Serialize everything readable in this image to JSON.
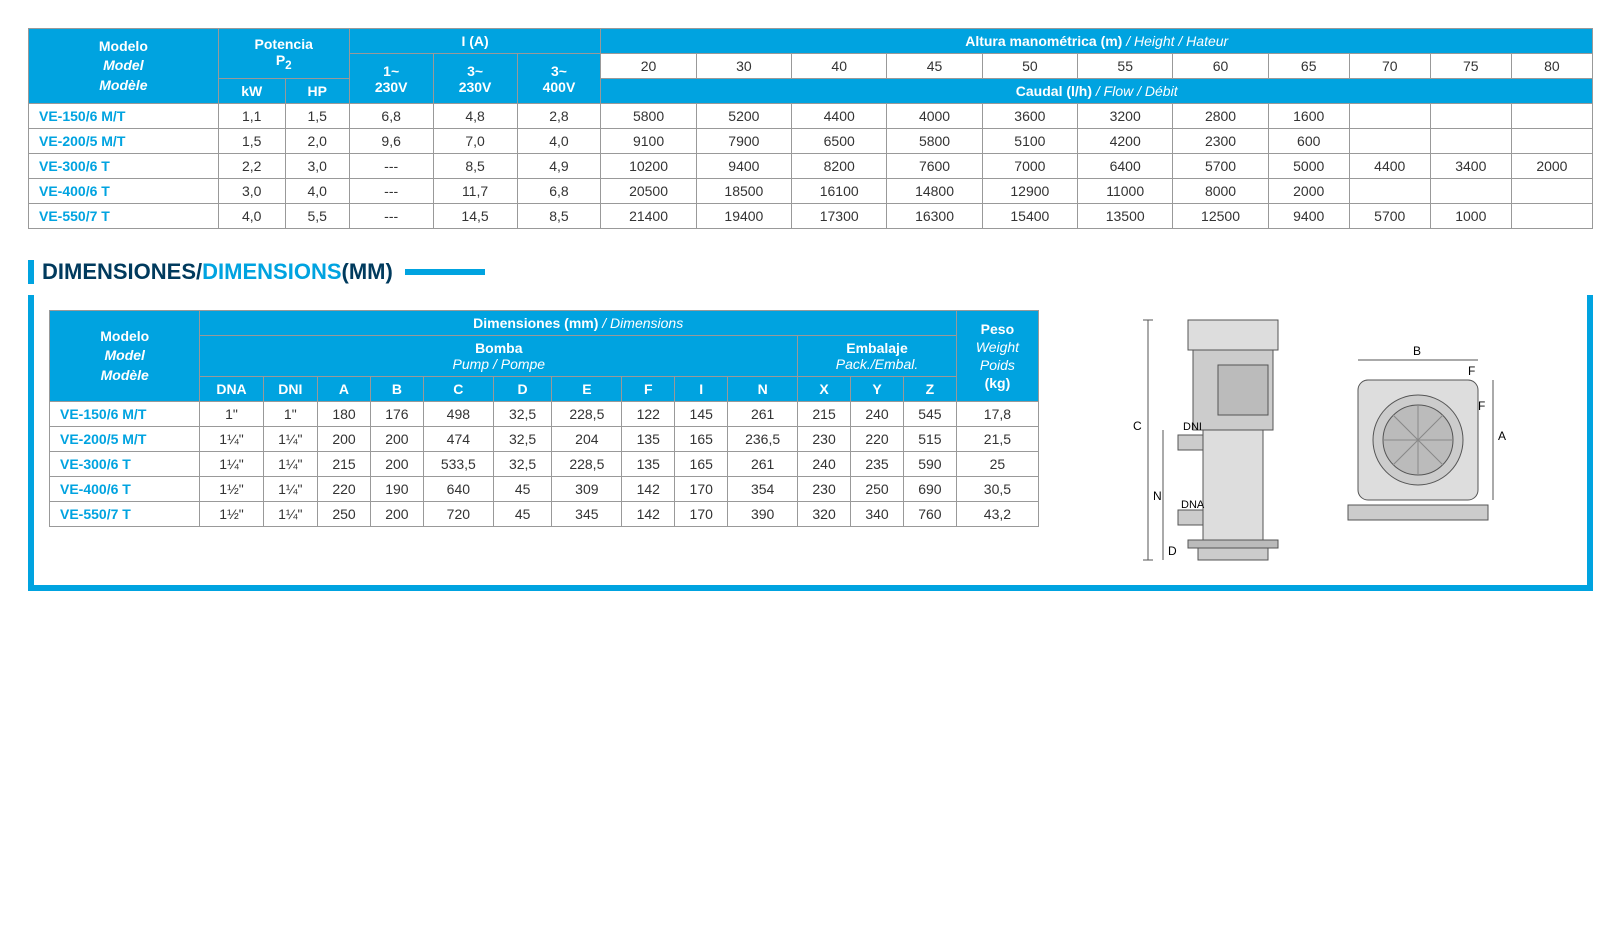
{
  "colors": {
    "brand_blue": "#00a3e0",
    "dark_blue": "#003a5d",
    "border": "#999999",
    "text": "#333333",
    "white": "#ffffff"
  },
  "spec_table": {
    "headers": {
      "modelo": "Modelo",
      "model": "Model",
      "modele": "Modèle",
      "potencia": "Potencia",
      "p2": "P",
      "p2_sub": "2",
      "kw": "kW",
      "hp": "HP",
      "ia": "I (A)",
      "v1_230": "1~",
      "v1_230b": "230V",
      "v3_230": "3~",
      "v3_230b": "230V",
      "v3_400": "3~",
      "v3_400b": "400V",
      "altura": "Altura manométrica (m)",
      "height": " / Height / Hateur",
      "caudal": "Caudal (l/h)",
      "flow": " / Flow / Débit",
      "heights": [
        "20",
        "30",
        "40",
        "45",
        "50",
        "55",
        "60",
        "65",
        "70",
        "75",
        "80"
      ]
    },
    "rows": [
      {
        "model": "VE-150/6 M/T",
        "kw": "1,1",
        "hp": "1,5",
        "i1": "6,8",
        "i2": "4,8",
        "i3": "2,8",
        "flow": [
          "5800",
          "5200",
          "4400",
          "4000",
          "3600",
          "3200",
          "2800",
          "1600",
          "",
          "",
          ""
        ]
      },
      {
        "model": "VE-200/5 M/T",
        "kw": "1,5",
        "hp": "2,0",
        "i1": "9,6",
        "i2": "7,0",
        "i3": "4,0",
        "flow": [
          "9100",
          "7900",
          "6500",
          "5800",
          "5100",
          "4200",
          "2300",
          "600",
          "",
          "",
          ""
        ]
      },
      {
        "model": "VE-300/6 T",
        "kw": "2,2",
        "hp": "3,0",
        "i1": "---",
        "i2": "8,5",
        "i3": "4,9",
        "flow": [
          "10200",
          "9400",
          "8200",
          "7600",
          "7000",
          "6400",
          "5700",
          "5000",
          "4400",
          "3400",
          "2000"
        ]
      },
      {
        "model": "VE-400/6 T",
        "kw": "3,0",
        "hp": "4,0",
        "i1": "---",
        "i2": "11,7",
        "i3": "6,8",
        "flow": [
          "20500",
          "18500",
          "16100",
          "14800",
          "12900",
          "11000",
          "8000",
          "2000",
          "",
          "",
          ""
        ]
      },
      {
        "model": "VE-550/7 T",
        "kw": "4,0",
        "hp": "5,5",
        "i1": "---",
        "i2": "14,5",
        "i3": "8,5",
        "flow": [
          "21400",
          "19400",
          "17300",
          "16300",
          "15400",
          "13500",
          "12500",
          "9400",
          "5700",
          "1000",
          ""
        ]
      }
    ]
  },
  "section": {
    "title_es": "DIMENSIONES",
    "sep": " / ",
    "title_en": "DIMENSIONS",
    "unit": " (MM)"
  },
  "dim_table": {
    "headers": {
      "modelo": "Modelo",
      "model": "Model",
      "modele": "Modèle",
      "dimensiones": "Dimensiones (mm)",
      "dimensions": " / Dimensions",
      "bomba": "Bomba",
      "pump": "Pump / Pompe",
      "embalaje": "Embalaje",
      "pack": "Pack./Embal.",
      "peso": "Peso",
      "weight": "Weight",
      "poids": "Poids",
      "kg": "(kg)",
      "cols": [
        "DNA",
        "DNI",
        "A",
        "B",
        "C",
        "D",
        "E",
        "F",
        "I",
        "N",
        "X",
        "Y",
        "Z"
      ]
    },
    "rows": [
      {
        "model": "VE-150/6 M/T",
        "vals": [
          "1\"",
          "1\"",
          "180",
          "176",
          "498",
          "32,5",
          "228,5",
          "122",
          "145",
          "261",
          "215",
          "240",
          "545"
        ],
        "peso": "17,8"
      },
      {
        "model": "VE-200/5 M/T",
        "vals": [
          "1¼\"",
          "1¼\"",
          "200",
          "200",
          "474",
          "32,5",
          "204",
          "135",
          "165",
          "236,5",
          "230",
          "220",
          "515"
        ],
        "peso": "21,5"
      },
      {
        "model": "VE-300/6 T",
        "vals": [
          "1¼\"",
          "1¼\"",
          "215",
          "200",
          "533,5",
          "32,5",
          "228,5",
          "135",
          "165",
          "261",
          "240",
          "235",
          "590"
        ],
        "peso": "25"
      },
      {
        "model": "VE-400/6 T",
        "vals": [
          "1½\"",
          "1¼\"",
          "220",
          "190",
          "640",
          "45",
          "309",
          "142",
          "170",
          "354",
          "230",
          "250",
          "690"
        ],
        "peso": "30,5"
      },
      {
        "model": "VE-550/7 T",
        "vals": [
          "1½\"",
          "1¼\"",
          "250",
          "200",
          "720",
          "45",
          "345",
          "142",
          "170",
          "390",
          "320",
          "340",
          "760"
        ],
        "peso": "43,2"
      }
    ]
  },
  "diagram": {
    "labels": {
      "c": "C",
      "n": "N",
      "d": "D",
      "dni": "DNI",
      "dna": "DNA",
      "b": "B",
      "f": "F",
      "a": "A"
    }
  }
}
